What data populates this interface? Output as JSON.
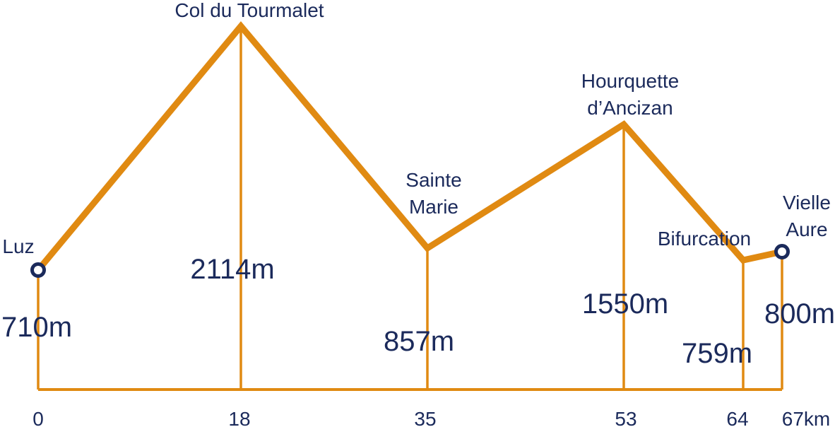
{
  "colors": {
    "route": "#e08a12",
    "text": "#1b2a5b",
    "marker": "#1b2a5b"
  },
  "profile": {
    "unit_distance": "km",
    "unit_altitude": "m",
    "points": [
      {
        "km": 0,
        "km_label": "0",
        "alt": 710,
        "alt_label": "710m",
        "name": [
          "Luz"
        ],
        "marker": true
      },
      {
        "km": 18,
        "km_label": "18",
        "alt": 2114,
        "alt_label": "2114m",
        "name": [
          "Col du Tourmalet"
        ],
        "marker": false
      },
      {
        "km": 35,
        "km_label": "35",
        "alt": 857,
        "alt_label": "857m",
        "name": [
          "Sainte",
          "Marie"
        ],
        "marker": false
      },
      {
        "km": 53,
        "km_label": "53",
        "alt": 1550,
        "alt_label": "1550m",
        "name": [
          "Hourquette",
          "d’Ancizan"
        ],
        "marker": false
      },
      {
        "km": 64,
        "km_label": "64",
        "alt": 759,
        "alt_label": "759m",
        "name": [
          "Bifurcation"
        ],
        "marker": false
      },
      {
        "km": 67,
        "km_label": "67km",
        "alt": 800,
        "alt_label": "800m",
        "name": [
          "Vielle",
          "Aure"
        ],
        "marker": true
      }
    ]
  }
}
